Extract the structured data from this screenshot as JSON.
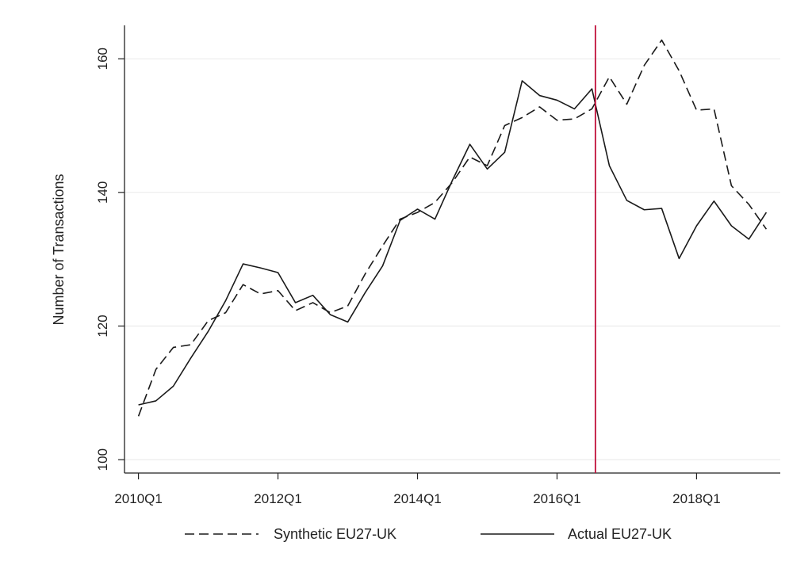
{
  "chart_data": {
    "type": "line",
    "title": "",
    "xlabel": "",
    "ylabel": "Number of Transactions",
    "x_tick_labels": [
      "2010Q1",
      "2012Q1",
      "2014Q1",
      "2016Q1",
      "2018Q1"
    ],
    "x_tick_positions": [
      0,
      8,
      16,
      24,
      32
    ],
    "y_ticks": [
      100,
      120,
      140,
      160
    ],
    "xlim": [
      -0.8,
      36.8
    ],
    "ylim": [
      98,
      165
    ],
    "grid": true,
    "legend_position": "bottom",
    "x": [
      "2010Q1",
      "2010Q2",
      "2010Q3",
      "2010Q4",
      "2011Q1",
      "2011Q2",
      "2011Q3",
      "2011Q4",
      "2012Q1",
      "2012Q2",
      "2012Q3",
      "2012Q4",
      "2013Q1",
      "2013Q2",
      "2013Q3",
      "2013Q4",
      "2014Q1",
      "2014Q2",
      "2014Q3",
      "2014Q4",
      "2015Q1",
      "2015Q2",
      "2015Q3",
      "2015Q4",
      "2016Q1",
      "2016Q2",
      "2016Q3",
      "2016Q4",
      "2017Q1",
      "2017Q2",
      "2017Q3",
      "2017Q4",
      "2018Q1",
      "2018Q2",
      "2018Q3",
      "2018Q4",
      "2019Q1"
    ],
    "treatment_line": {
      "x": 26.2,
      "color": "#c0103a"
    },
    "series": [
      {
        "name": "Synthetic EU27-UK",
        "style": "dashed",
        "color": "#1a1a1a",
        "values": [
          106.5,
          113.5,
          116.8,
          117.2,
          120.8,
          122.0,
          126.2,
          124.8,
          125.3,
          122.3,
          123.5,
          122.0,
          123.0,
          127.8,
          132.0,
          136.0,
          137.0,
          138.5,
          141.5,
          145.3,
          144.0,
          150.0,
          151.2,
          152.8,
          150.8,
          151.0,
          152.5,
          157.3,
          153.2,
          159.0,
          162.8,
          158.2,
          152.3,
          152.5,
          141.0,
          138.2,
          134.5
        ]
      },
      {
        "name": "Actual EU27-UK",
        "style": "solid",
        "color": "#1a1a1a",
        "values": [
          108.2,
          108.8,
          111.0,
          115.2,
          119.2,
          123.8,
          129.3,
          128.7,
          128.0,
          123.5,
          124.6,
          121.7,
          120.6,
          125.0,
          129.0,
          135.8,
          137.5,
          136.0,
          141.8,
          147.2,
          143.5,
          146.0,
          156.7,
          154.5,
          153.8,
          152.5,
          155.5,
          144.0,
          138.8,
          137.4,
          137.6,
          130.1,
          135.0,
          138.7,
          135.0,
          133.0,
          137.0
        ]
      }
    ]
  }
}
